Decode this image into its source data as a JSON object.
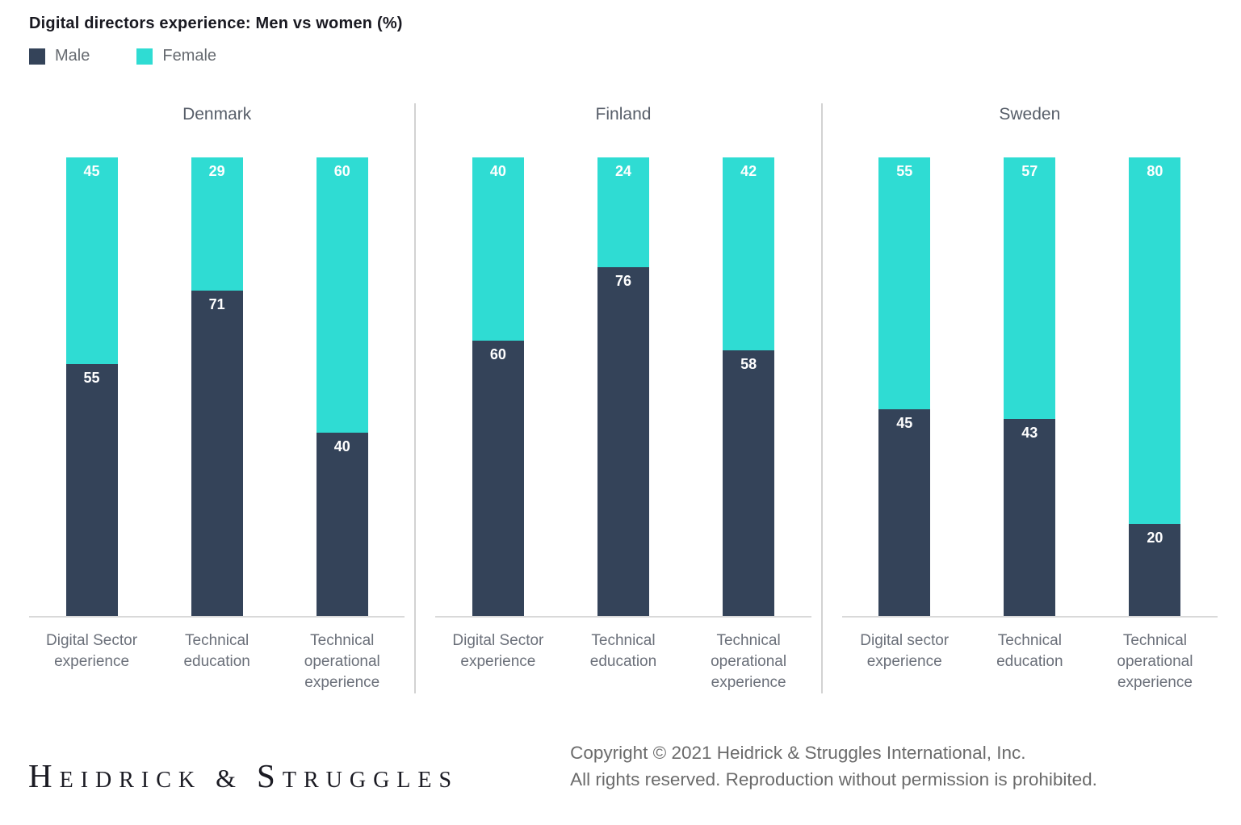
{
  "header": {
    "title": "Digital directors experience: Men vs women (%)"
  },
  "legend": {
    "items": [
      {
        "label": "Male",
        "color": "#344359"
      },
      {
        "label": "Female",
        "color": "#2fdcd3"
      }
    ]
  },
  "chart_data": {
    "type": "bar",
    "stacked": true,
    "unit": "%",
    "ylim": [
      0,
      100
    ],
    "grid": false,
    "legend_position": "top-left",
    "title": "Digital directors experience: Men vs women (%)",
    "series_names": [
      "Male",
      "Female"
    ],
    "colors": {
      "Male": "#344359",
      "Female": "#2fdcd3"
    },
    "panels": [
      {
        "country": "Denmark",
        "categories": [
          "Digital Sector experience",
          "Technical education",
          "Technical operational experience"
        ],
        "series": [
          {
            "name": "Male",
            "values": [
              55,
              71,
              40
            ]
          },
          {
            "name": "Female",
            "values": [
              45,
              29,
              60
            ]
          }
        ]
      },
      {
        "country": "Finland",
        "categories": [
          "Digital Sector experience",
          "Technical education",
          "Technical operational experience"
        ],
        "series": [
          {
            "name": "Male",
            "values": [
              60,
              76,
              58
            ]
          },
          {
            "name": "Female",
            "values": [
              40,
              24,
              42
            ]
          }
        ]
      },
      {
        "country": "Sweden",
        "categories": [
          "Digital sector experience",
          "Technical education",
          "Technical operational experience"
        ],
        "series": [
          {
            "name": "Male",
            "values": [
              45,
              43,
              20
            ]
          },
          {
            "name": "Female",
            "values": [
              55,
              57,
              80
            ]
          }
        ]
      }
    ]
  },
  "footer": {
    "brand": "Heidrick & Struggles",
    "brand_parts": [
      {
        "text": "H",
        "size": "large"
      },
      {
        "text": "EIDRICK",
        "size": "small"
      },
      {
        "text": " & ",
        "size": "amp"
      },
      {
        "text": "S",
        "size": "large"
      },
      {
        "text": "TRUGGLES",
        "size": "small"
      }
    ],
    "copyright_line1": "Copyright © 2021 Heidrick & Struggles International, Inc.",
    "copyright_line2": "All rights reserved. Reproduction without permission is prohibited."
  }
}
